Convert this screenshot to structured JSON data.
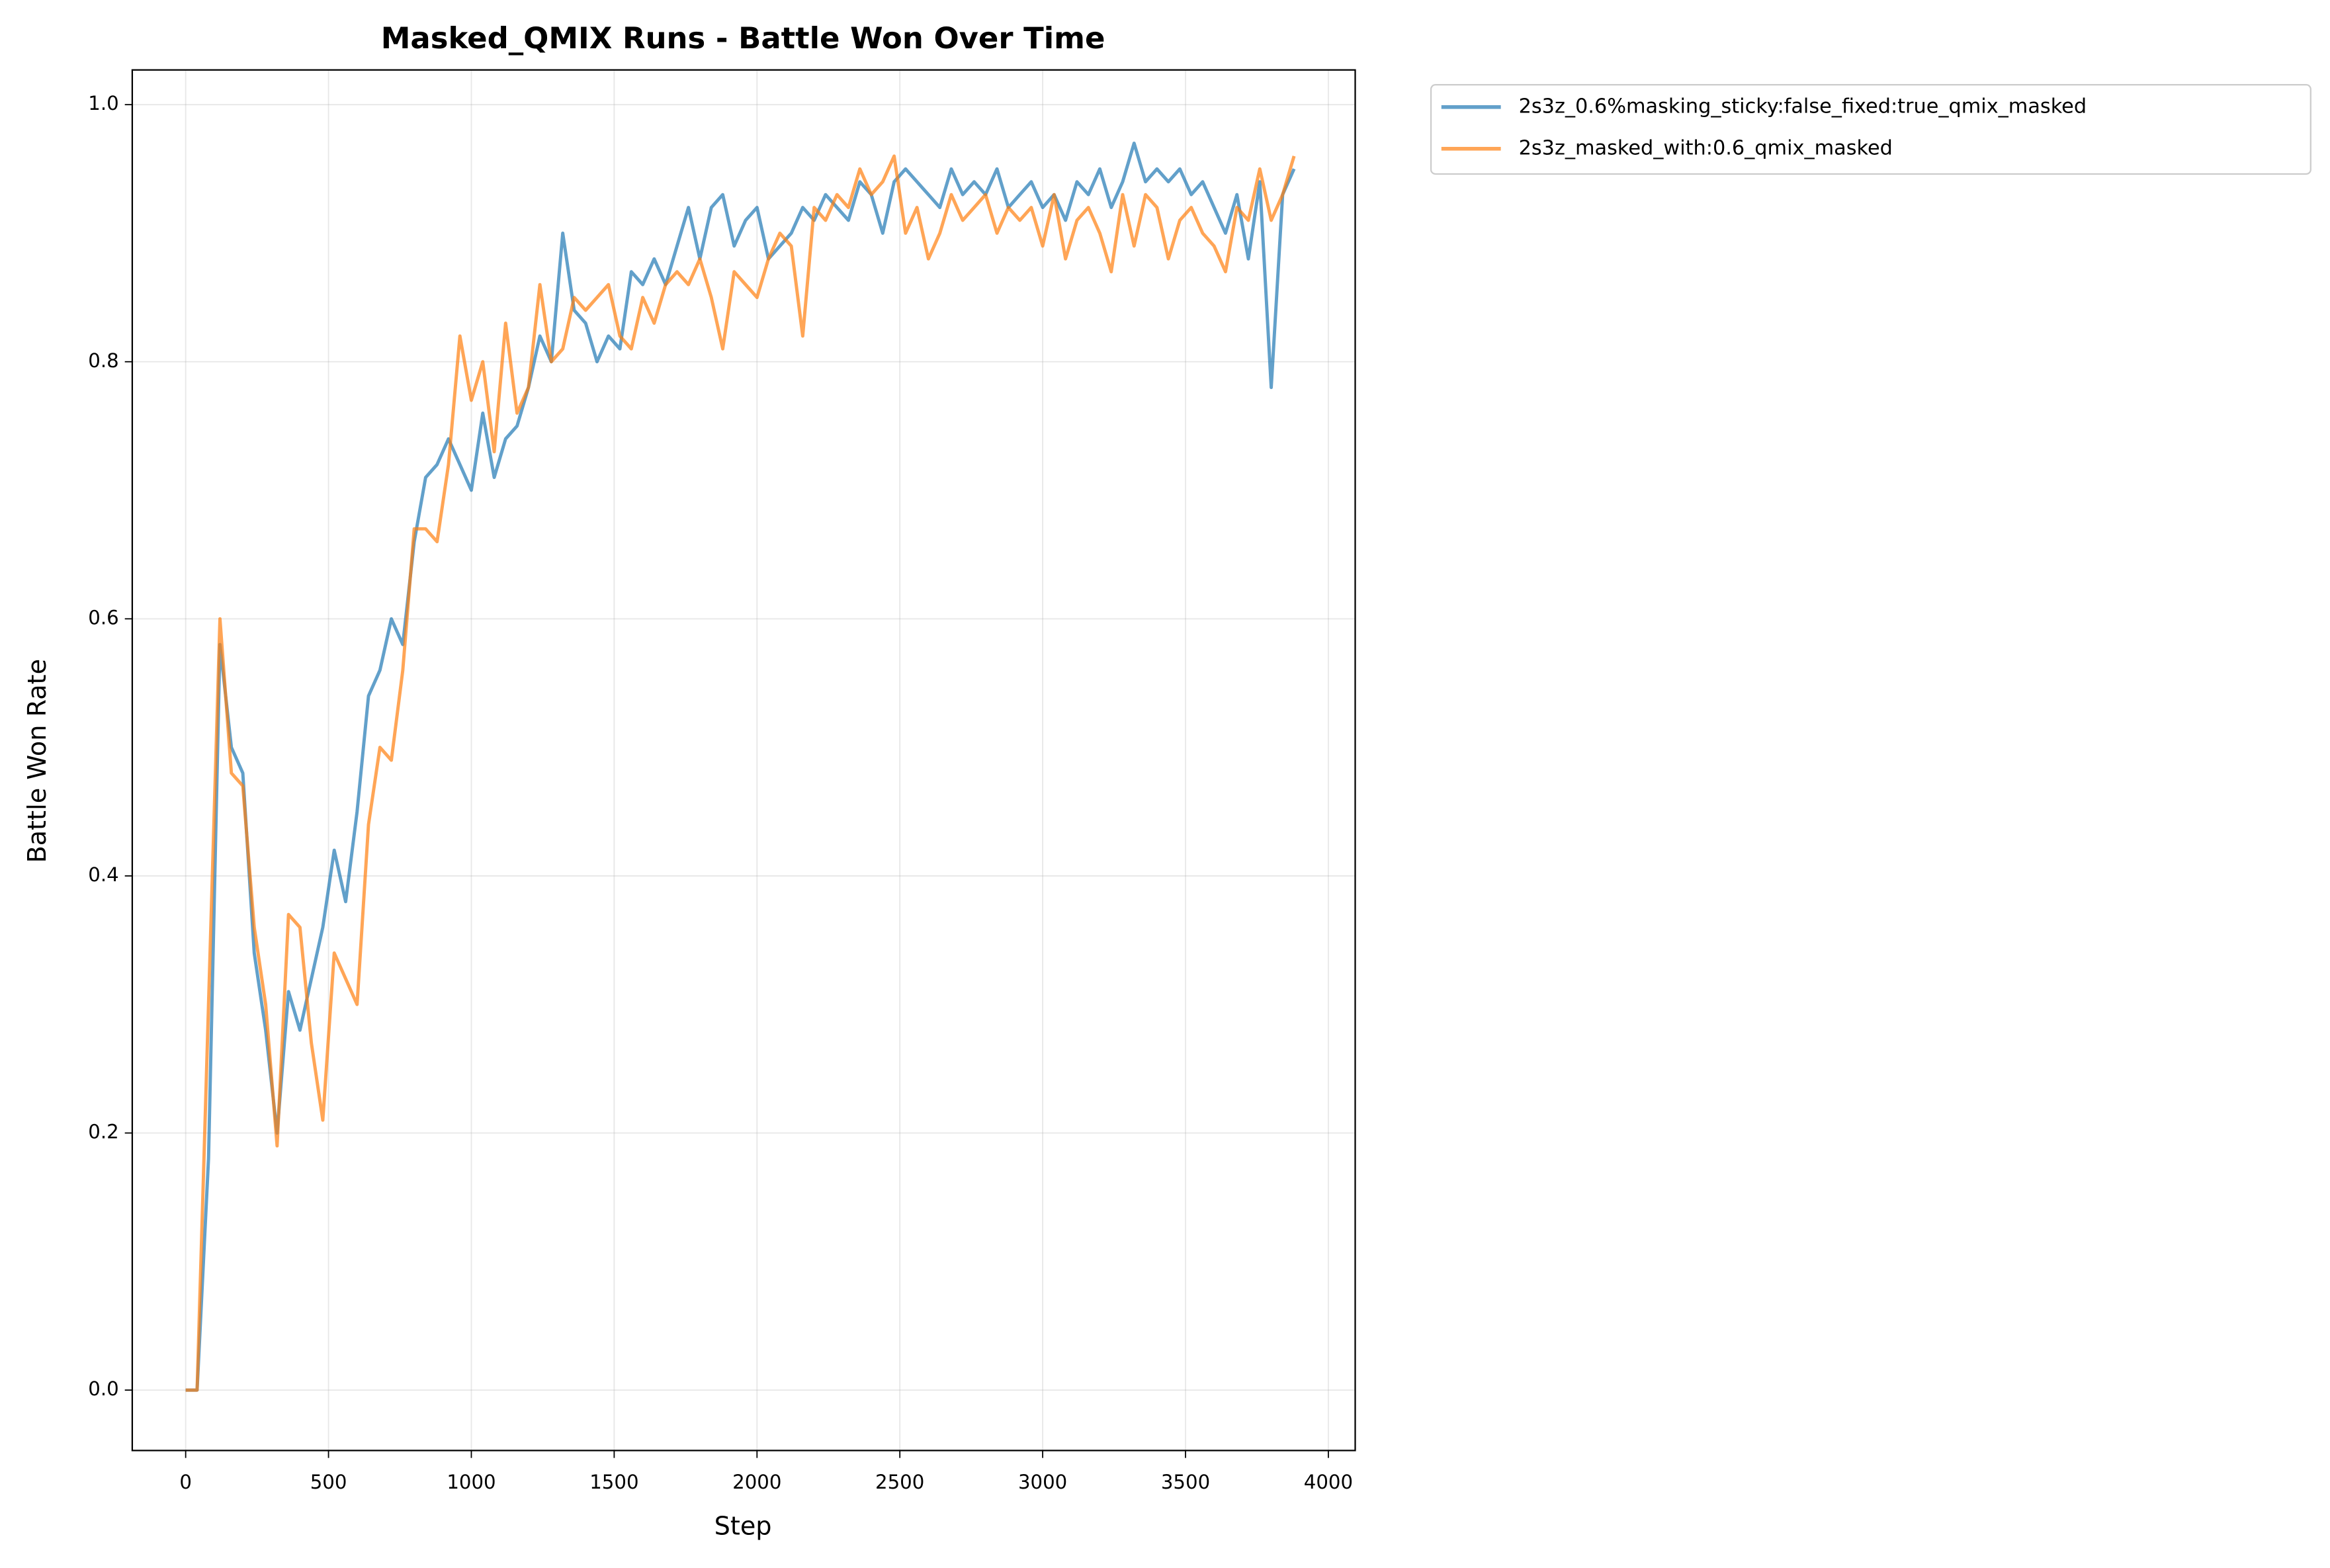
{
  "chart_data": {
    "type": "line",
    "title": "Masked_QMIX Runs - Battle Won Over Time",
    "x_label": "Step",
    "y_label": "Battle Won Rate",
    "x": [
      0,
      40,
      80,
      120,
      160,
      200,
      240,
      280,
      320,
      360,
      400,
      440,
      480,
      520,
      560,
      600,
      640,
      680,
      720,
      760,
      800,
      840,
      880,
      920,
      960,
      1000,
      1040,
      1080,
      1120,
      1160,
      1200,
      1240,
      1280,
      1320,
      1360,
      1400,
      1440,
      1480,
      1520,
      1560,
      1600,
      1640,
      1680,
      1720,
      1760,
      1800,
      1840,
      1880,
      1920,
      1960,
      2000,
      2040,
      2080,
      2120,
      2160,
      2200,
      2240,
      2280,
      2320,
      2360,
      2400,
      2440,
      2480,
      2520,
      2560,
      2600,
      2640,
      2680,
      2720,
      2760,
      2800,
      2840,
      2880,
      2920,
      2960,
      3000,
      3040,
      3080,
      3120,
      3160,
      3200,
      3240,
      3280,
      3320,
      3360,
      3400,
      3440,
      3480,
      3520,
      3560,
      3600,
      3640,
      3680,
      3720,
      3760,
      3800,
      3840,
      3880
    ],
    "series": [
      {
        "name": "2s3z_0.6%masking_sticky:false_fixed:true_qmix_masked",
        "color": "#1f77b4",
        "values": [
          0,
          0,
          0.18,
          0.58,
          0.5,
          0.48,
          0.34,
          0.28,
          0.2,
          0.31,
          0.28,
          0.32,
          0.36,
          0.42,
          0.38,
          0.45,
          0.54,
          0.56,
          0.6,
          0.58,
          0.66,
          0.71,
          0.72,
          0.74,
          0.72,
          0.7,
          0.76,
          0.71,
          0.74,
          0.75,
          0.78,
          0.82,
          0.8,
          0.9,
          0.84,
          0.83,
          0.8,
          0.82,
          0.81,
          0.87,
          0.86,
          0.88,
          0.86,
          0.89,
          0.92,
          0.88,
          0.92,
          0.93,
          0.89,
          0.91,
          0.92,
          0.88,
          0.89,
          0.9,
          0.92,
          0.91,
          0.93,
          0.92,
          0.91,
          0.94,
          0.93,
          0.9,
          0.94,
          0.95,
          0.94,
          0.93,
          0.92,
          0.95,
          0.93,
          0.94,
          0.93,
          0.95,
          0.92,
          0.93,
          0.94,
          0.92,
          0.93,
          0.91,
          0.94,
          0.93,
          0.95,
          0.92,
          0.94,
          0.97,
          0.94,
          0.95,
          0.94,
          0.95,
          0.93,
          0.94,
          0.92,
          0.9,
          0.93,
          0.88,
          0.94,
          0.78,
          0.93,
          0.95
        ]
      },
      {
        "name": "2s3z_masked_with:0.6_qmix_masked",
        "color": "#ff7f0e",
        "values": [
          0,
          0,
          0.3,
          0.6,
          0.48,
          0.47,
          0.36,
          0.3,
          0.19,
          0.37,
          0.36,
          0.27,
          0.21,
          0.34,
          0.32,
          0.3,
          0.44,
          0.5,
          0.49,
          0.56,
          0.67,
          0.67,
          0.66,
          0.72,
          0.82,
          0.77,
          0.8,
          0.73,
          0.83,
          0.76,
          0.78,
          0.86,
          0.8,
          0.81,
          0.85,
          0.84,
          0.85,
          0.86,
          0.82,
          0.81,
          0.85,
          0.83,
          0.86,
          0.87,
          0.86,
          0.88,
          0.85,
          0.81,
          0.87,
          0.86,
          0.85,
          0.88,
          0.9,
          0.89,
          0.82,
          0.92,
          0.91,
          0.93,
          0.92,
          0.95,
          0.93,
          0.94,
          0.96,
          0.9,
          0.92,
          0.88,
          0.9,
          0.93,
          0.91,
          0.92,
          0.93,
          0.9,
          0.92,
          0.91,
          0.92,
          0.89,
          0.93,
          0.88,
          0.91,
          0.92,
          0.9,
          0.87,
          0.93,
          0.89,
          0.93,
          0.92,
          0.88,
          0.91,
          0.92,
          0.9,
          0.89,
          0.87,
          0.92,
          0.91,
          0.95,
          0.91,
          0.93,
          0.96
        ]
      }
    ],
    "xlim": [
      -187,
      4094
    ],
    "ylim": [
      -0.047,
      1.027
    ],
    "xticks": [
      0,
      500,
      1000,
      1500,
      2000,
      2500,
      3000,
      3500,
      4000
    ],
    "yticks": [
      {
        "value": 0,
        "label": "0.0"
      },
      0.2,
      0.4,
      0.6,
      0.8,
      {
        "value": 1,
        "label": "1.0"
      }
    ],
    "grid": true,
    "legend": "outside upper right"
  }
}
